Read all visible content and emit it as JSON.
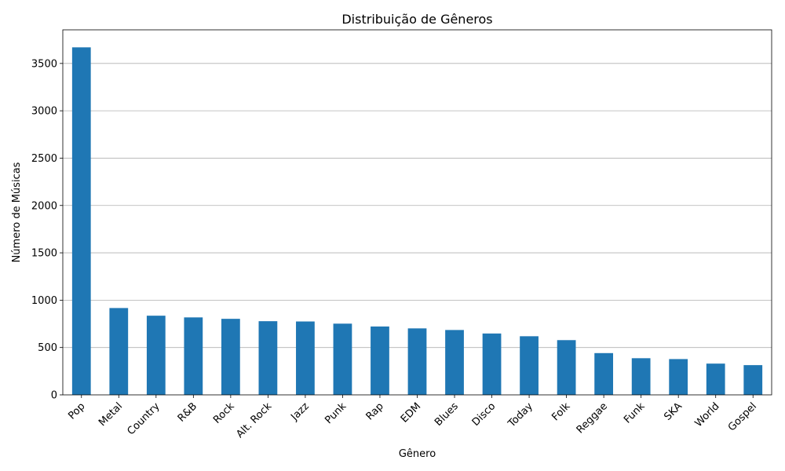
{
  "colors": {
    "bar": "#1f77b4",
    "grid": "#b0b0b0",
    "axis": "#000000",
    "background": "#ffffff"
  },
  "chart_data": {
    "type": "bar",
    "title": "Distribuição de Gêneros",
    "xlabel": "Gênero",
    "ylabel": "Número de Músicas",
    "categories": [
      "Pop",
      "Metal",
      "Country",
      "R&B",
      "Rock",
      "Alt. Rock",
      "Jazz",
      "Punk",
      "Rap",
      "EDM",
      "Blues",
      "Disco",
      "Today",
      "Folk",
      "Reggae",
      "Funk",
      "SKA",
      "World",
      "Gospel"
    ],
    "values": [
      3670,
      917,
      836,
      818,
      803,
      778,
      775,
      752,
      722,
      702,
      685,
      648,
      619,
      578,
      441,
      387,
      378,
      330,
      314
    ],
    "ylim": [
      0,
      3855
    ],
    "yticks": [
      0,
      500,
      1000,
      1500,
      2000,
      2500,
      3000,
      3500
    ],
    "grid": "y-axis only",
    "legend": "none",
    "xtick_rotation": 45
  }
}
